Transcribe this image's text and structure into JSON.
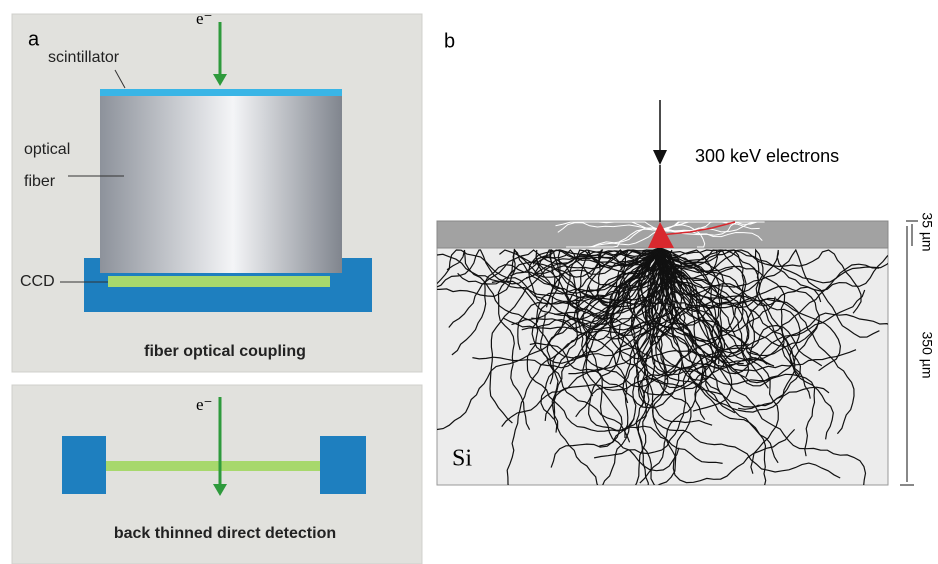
{
  "panel_a": {
    "label": "a",
    "top": {
      "beam_label": "e⁻",
      "scintillator": "scintillator",
      "optical_fiber": [
        "optical",
        "fiber"
      ],
      "ccd": "CCD",
      "caption": "fiber optical coupling"
    },
    "bottom": {
      "beam_label": "e⁻",
      "caption": "back thinned direct detection"
    }
  },
  "panel_b": {
    "label": "b",
    "beam_label": "300 keV electrons",
    "material": "Si",
    "layer_thickness": "35 µm",
    "substrate_thickness": "350 µm"
  }
}
